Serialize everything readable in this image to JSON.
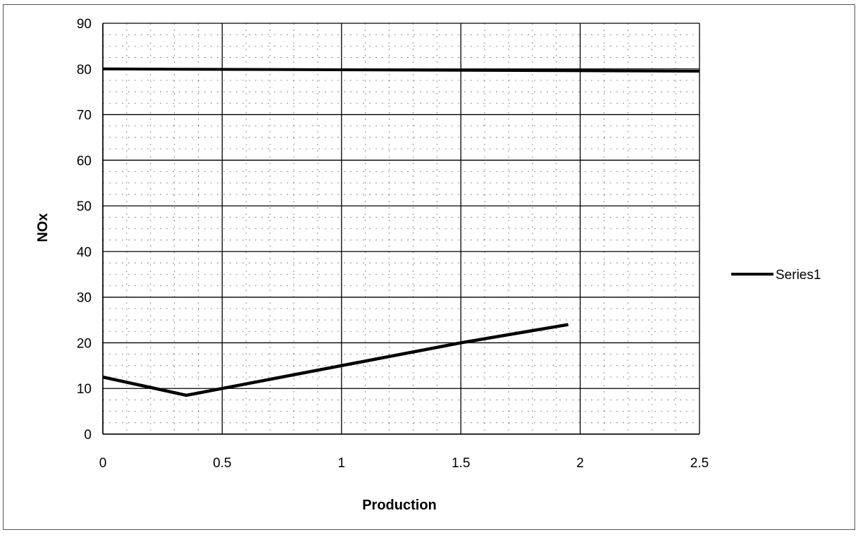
{
  "chart_data": {
    "type": "line",
    "title": "",
    "xlabel": "Production",
    "ylabel": "NOx",
    "xlim": [
      0,
      2.5
    ],
    "ylim": [
      0,
      90
    ],
    "x_ticks": [
      "0",
      "0.5",
      "1",
      "1.5",
      "2",
      "2.5"
    ],
    "y_ticks": [
      "0",
      "10",
      "20",
      "30",
      "40",
      "50",
      "60",
      "70",
      "80",
      "90"
    ],
    "grid": true,
    "legend_position": "right",
    "series": [
      {
        "name": "Series1",
        "x": [
          0,
          0.35,
          1.0,
          1.5,
          1.95
        ],
        "y": [
          12.5,
          8.5,
          15,
          20,
          24
        ]
      }
    ],
    "reference_lines": [
      {
        "x": [
          0,
          2.5
        ],
        "y": [
          80,
          79.5
        ]
      }
    ],
    "colors": {
      "line": "#000000",
      "grid": "#000000",
      "background": "#ffffff"
    }
  }
}
